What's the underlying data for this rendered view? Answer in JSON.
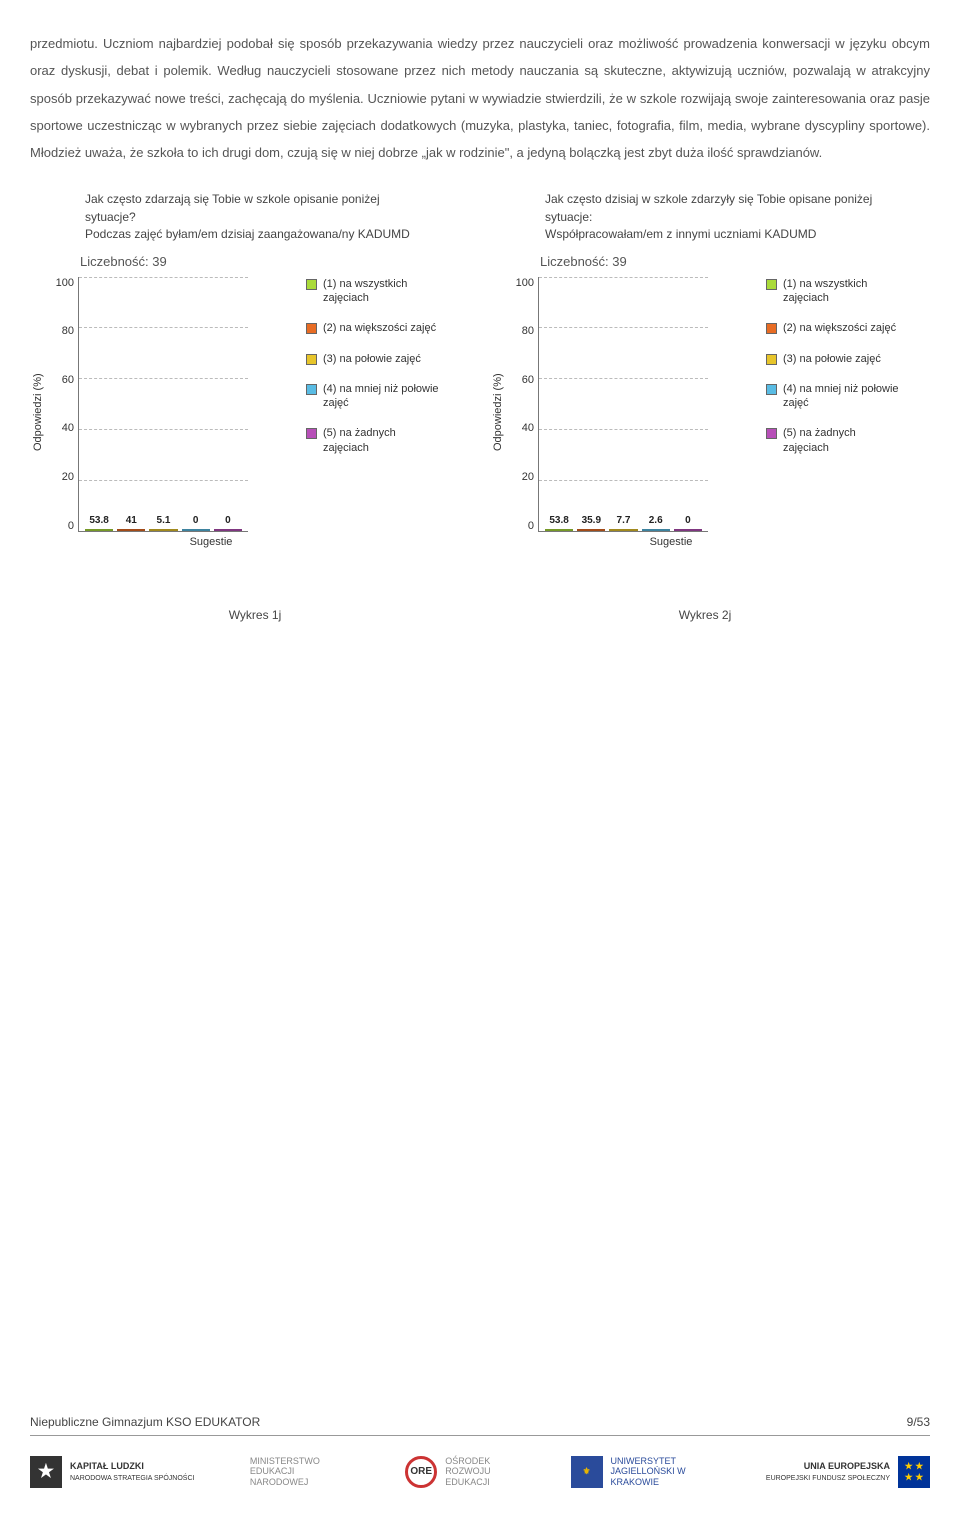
{
  "paragraph": "przedmiotu. Uczniom najbardziej podobał się sposób przekazywania wiedzy przez nauczycieli oraz możliwość prowadzenia konwersacji w języku obcym oraz dyskusji, debat i polemik. Według nauczycieli stosowane przez nich metody nauczania są skuteczne, aktywizują uczniów, pozwalają w atrakcyjny sposób przekazywać nowe treści, zachęcają do myślenia. Uczniowie pytani w wywiadzie stwierdzili, że w szkole rozwijają swoje zainteresowania oraz pasje sportowe uczestnicząc w wybranych przez siebie zajęciach dodatkowych (muzyka, plastyka, taniec, fotografia, film, media, wybrane dyscypliny sportowe). Młodzież uważa, że szkoła to ich drugi dom, czują się w niej dobrze „jak w rodzinie\", a jedyną bolączką jest zbyt duża ilość sprawdzianów.",
  "chart1": {
    "title": "Jak często zdarzają się Tobie w szkole opisanie poniżej sytuacje?\nPodczas zajęć byłam/em dzisiaj zaangażowana/ny KADUMD",
    "count_label": "Liczebność: 39",
    "yaxis": "Odpowiedzi (%)",
    "xaxis": "Sugestie",
    "ylim": [
      0,
      100
    ],
    "ytick_step": 20,
    "grid_color": "#bbbbbb",
    "categories": [
      "1",
      "2",
      "3",
      "4",
      "5"
    ],
    "values": [
      53.8,
      41,
      5.1,
      0,
      0
    ],
    "bar_colors": [
      "#aadb3a",
      "#e86c24",
      "#e7c52b",
      "#59bce4",
      "#b74fb8"
    ],
    "value_labels": [
      "53.8",
      "41",
      "5.1",
      "0",
      "0"
    ]
  },
  "chart2": {
    "title": "Jak często dzisiaj w szkole zdarzyły się Tobie opisane poniżej sytuacje:\nWspółpracowałam/em z innymi uczniami KADUMD",
    "count_label": "Liczebność: 39",
    "yaxis": "Odpowiedzi (%)",
    "xaxis": "Sugestie",
    "ylim": [
      0,
      100
    ],
    "ytick_step": 20,
    "grid_color": "#bbbbbb",
    "categories": [
      "1",
      "2",
      "3",
      "4",
      "5"
    ],
    "values": [
      53.8,
      35.9,
      7.7,
      2.6,
      0
    ],
    "bar_colors": [
      "#aadb3a",
      "#e86c24",
      "#e7c52b",
      "#59bce4",
      "#b74fb8"
    ],
    "value_labels": [
      "53.8",
      "35.9",
      "7.7",
      "2.6",
      "0"
    ]
  },
  "legend": [
    {
      "color": "#aadb3a",
      "label": "(1) na wszystkich zajęciach"
    },
    {
      "color": "#e86c24",
      "label": "(2) na większości zajęć"
    },
    {
      "color": "#e7c52b",
      "label": "(3) na połowie zajęć"
    },
    {
      "color": "#59bce4",
      "label": "(4) na mniej niż połowie zajęć"
    },
    {
      "color": "#b74fb8",
      "label": "(5) na żadnych zajęciach"
    }
  ],
  "caption1": "Wykres 1j",
  "caption2": "Wykres 2j",
  "footer": {
    "left": "Niepubliczne Gimnazjum KSO EDUKATOR",
    "right": "9/53"
  },
  "logos": {
    "kapital": "KAPITAŁ LUDZKI",
    "kapital_sub": "NARODOWA STRATEGIA SPÓJNOŚCI",
    "men": "MINISTERSTWO EDUKACJI NARODOWEJ",
    "ore_abbr": "ORE",
    "ore": "OŚRODEK ROZWOJU EDUKACJI",
    "uj": "UNIWERSYTET JAGIELLOŃSKI W KRAKOWIE",
    "ue": "UNIA EUROPEJSKA",
    "ue_sub": "EUROPEJSKI FUNDUSZ SPOŁECZNY"
  }
}
